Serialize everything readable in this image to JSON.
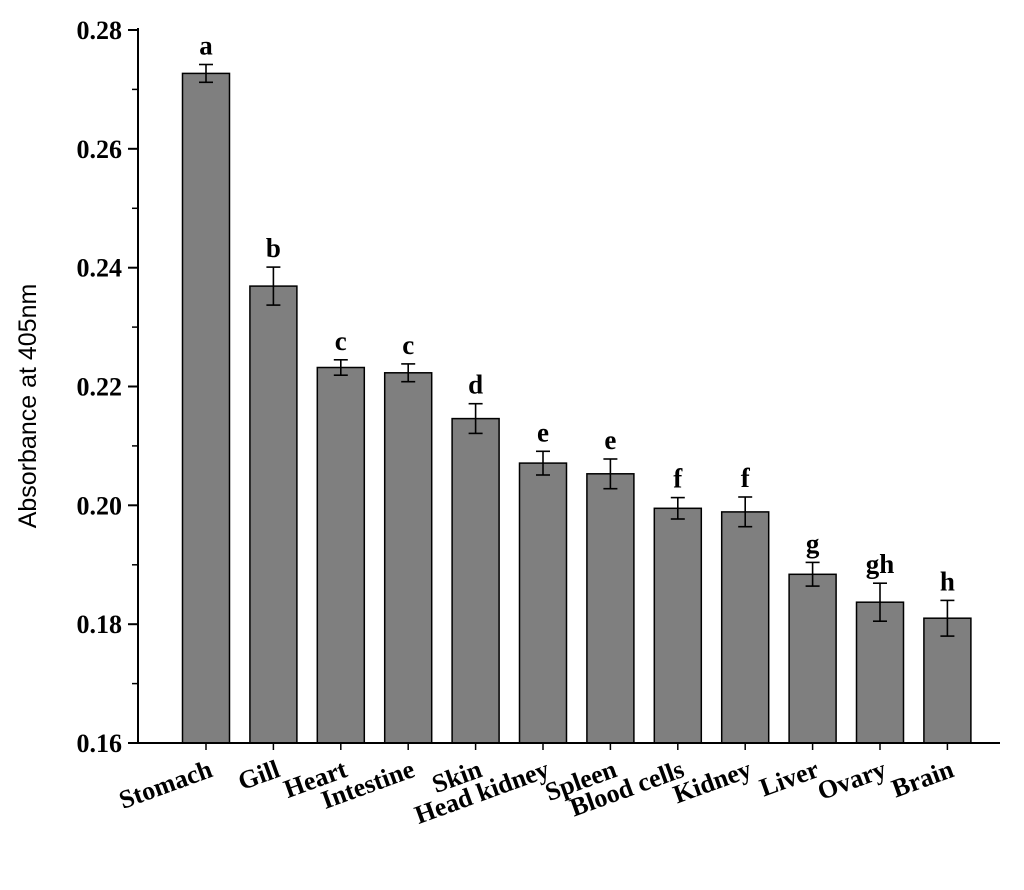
{
  "chart_data": {
    "type": "bar",
    "title": "",
    "xlabel": "",
    "ylabel": "Absorbance at 405nm",
    "ylim": [
      0.16,
      0.28
    ],
    "yticks": [
      "0.16",
      "0.18",
      "0.20",
      "0.22",
      "0.24",
      "0.26",
      "0.28"
    ],
    "grid": false,
    "legend": "none",
    "bar_color": "#7f7f7f",
    "categories": [
      "Stomach",
      "Gill",
      "Heart",
      "Intestine",
      "Skin",
      "Head kidney",
      "Spleen",
      "Blood cells",
      "Kidney",
      "Liver",
      "Ovary",
      "Brain"
    ],
    "values": [
      0.2727,
      0.2369,
      0.2232,
      0.2223,
      0.2146,
      0.2071,
      0.2053,
      0.1995,
      0.1989,
      0.1884,
      0.1837,
      0.181
    ],
    "errors": [
      0.0015,
      0.0032,
      0.0013,
      0.0015,
      0.0025,
      0.002,
      0.0025,
      0.0018,
      0.0025,
      0.002,
      0.0032,
      0.003
    ],
    "significance": [
      "a",
      "b",
      "c",
      "c",
      "d",
      "e",
      "e",
      "f",
      "f",
      "g",
      "gh",
      "h"
    ]
  }
}
